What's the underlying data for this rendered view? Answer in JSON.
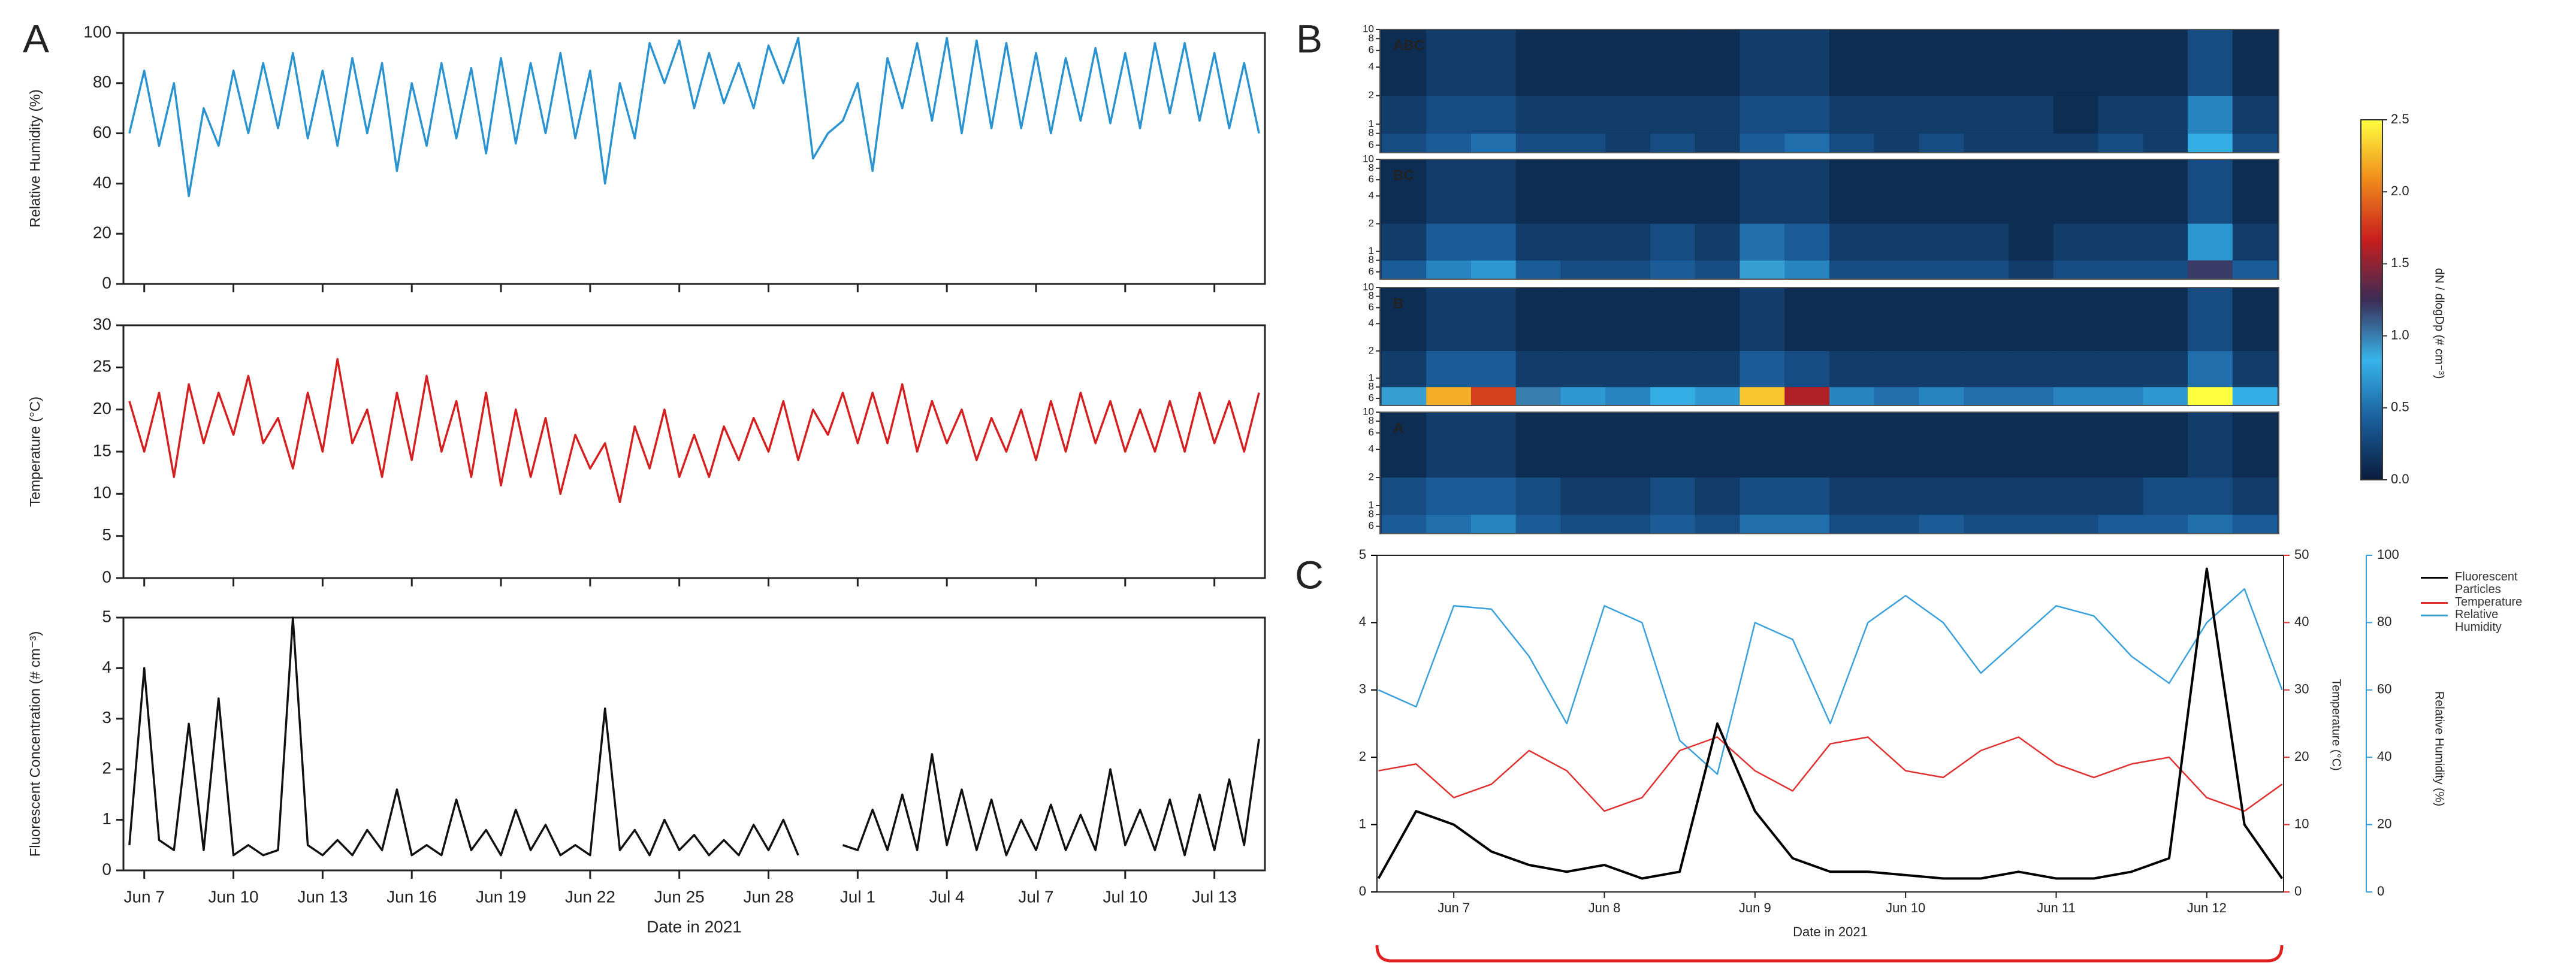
{
  "chart_data": [
    {
      "type": "line",
      "panel_label": "A",
      "ylabel": "Relative Humidity (%)",
      "color": "#2a93d0",
      "x": [
        6.5,
        7,
        7.5,
        8,
        8.5,
        9,
        9.5,
        10,
        10.5,
        11,
        11.5,
        12,
        12.5,
        13,
        13.5,
        14,
        14.5,
        15,
        15.5,
        16,
        16.5,
        17,
        17.5,
        18,
        18.5,
        19,
        19.5,
        20,
        20.5,
        21,
        21.5,
        22,
        22.5,
        23,
        23.5,
        24,
        24.5,
        25,
        25.5,
        26,
        26.5,
        27,
        27.5,
        28,
        28.5,
        29,
        29.5,
        30,
        30.5,
        31,
        31.5,
        32,
        32.5,
        33,
        33.5,
        34,
        34.5,
        35,
        35.5,
        36,
        36.5,
        37,
        37.5,
        38,
        38.5,
        39,
        39.5,
        40,
        40.5,
        41,
        41.5,
        42,
        42.5,
        43,
        43.5,
        44,
        44.5
      ],
      "values": [
        60,
        85,
        55,
        80,
        35,
        70,
        55,
        85,
        60,
        88,
        62,
        92,
        58,
        85,
        55,
        90,
        60,
        88,
        45,
        80,
        55,
        88,
        58,
        86,
        52,
        90,
        56,
        88,
        60,
        92,
        58,
        85,
        40,
        80,
        58,
        96,
        80,
        97,
        70,
        92,
        72,
        88,
        70,
        95,
        80,
        98,
        50,
        60,
        65,
        80,
        45,
        90,
        70,
        96,
        65,
        98,
        60,
        97,
        62,
        96,
        62,
        92,
        60,
        90,
        65,
        94,
        64,
        92,
        62,
        96,
        68,
        96,
        65,
        92,
        62,
        88,
        60
      ],
      "xlim": [
        6.3,
        44.7
      ],
      "ylim": [
        0,
        100
      ],
      "yticks": [
        0,
        20,
        40,
        60,
        80,
        100
      ]
    },
    {
      "type": "line",
      "ylabel": "Temperature (°C)",
      "color": "#d42020",
      "x": [
        6.5,
        7,
        7.5,
        8,
        8.5,
        9,
        9.5,
        10,
        10.5,
        11,
        11.5,
        12,
        12.5,
        13,
        13.5,
        14,
        14.5,
        15,
        15.5,
        16,
        16.5,
        17,
        17.5,
        18,
        18.5,
        19,
        19.5,
        20,
        20.5,
        21,
        21.5,
        22,
        22.5,
        23,
        23.5,
        24,
        24.5,
        25,
        25.5,
        26,
        26.5,
        27,
        27.5,
        28,
        28.5,
        29,
        29.5,
        30,
        30.5,
        31,
        31.5,
        32,
        32.5,
        33,
        33.5,
        34,
        34.5,
        35,
        35.5,
        36,
        36.5,
        37,
        37.5,
        38,
        38.5,
        39,
        39.5,
        40,
        40.5,
        41,
        41.5,
        42,
        42.5,
        43,
        43.5,
        44,
        44.5
      ],
      "values": [
        21,
        15,
        22,
        12,
        23,
        16,
        22,
        17,
        24,
        16,
        19,
        13,
        22,
        15,
        26,
        16,
        20,
        12,
        22,
        14,
        24,
        15,
        21,
        12,
        22,
        11,
        20,
        12,
        19,
        10,
        17,
        13,
        16,
        9,
        18,
        13,
        20,
        12,
        17,
        12,
        18,
        14,
        19,
        15,
        21,
        14,
        20,
        17,
        22,
        16,
        22,
        16,
        23,
        15,
        21,
        16,
        20,
        14,
        19,
        15,
        20,
        14,
        21,
        15,
        22,
        16,
        21,
        15,
        20,
        15,
        21,
        15,
        22,
        16,
        21,
        15,
        22
      ],
      "xlim": [
        6.3,
        44.7
      ],
      "ylim": [
        0,
        30
      ],
      "yticks": [
        0,
        5,
        10,
        15,
        20,
        25,
        30
      ]
    },
    {
      "type": "line",
      "ylabel": "Fluorescent Concentration (# cm⁻³)",
      "xlabel": "Date in 2021",
      "color": "#111111",
      "x": [
        6.5,
        7,
        7.5,
        8,
        8.5,
        9,
        9.5,
        10,
        10.5,
        11,
        11.5,
        12,
        12.5,
        13,
        13.5,
        14,
        14.5,
        15,
        15.5,
        16,
        16.5,
        17,
        17.5,
        18,
        18.5,
        19,
        19.5,
        20,
        20.5,
        21,
        21.5,
        22,
        22.5,
        23,
        23.5,
        24,
        24.5,
        25,
        25.5,
        26,
        26.5,
        27,
        27.5,
        28,
        28.5,
        29,
        29.5,
        30,
        30.5,
        31,
        31.5,
        32,
        32.5,
        33,
        33.5,
        34,
        34.5,
        35,
        35.5,
        36,
        36.5,
        37,
        37.5,
        38,
        38.5,
        39,
        39.5,
        40,
        40.5,
        41,
        41.5,
        42,
        42.5,
        43,
        43.5,
        44,
        44.5
      ],
      "values": [
        0.5,
        4.0,
        0.6,
        0.4,
        2.9,
        0.4,
        3.4,
        0.3,
        0.5,
        0.3,
        0.4,
        5.0,
        0.5,
        0.3,
        0.6,
        0.3,
        0.8,
        0.4,
        1.6,
        0.3,
        0.5,
        0.3,
        1.4,
        0.4,
        0.8,
        0.3,
        1.2,
        0.4,
        0.9,
        0.3,
        0.5,
        0.3,
        3.2,
        0.4,
        0.8,
        0.3,
        1.0,
        0.4,
        0.7,
        0.3,
        0.6,
        0.3,
        0.9,
        0.4,
        1.0,
        0.3,
        null,
        null,
        0.5,
        0.4,
        1.2,
        0.4,
        1.5,
        0.4,
        2.3,
        0.5,
        1.6,
        0.4,
        1.4,
        0.3,
        1.0,
        0.4,
        1.3,
        0.4,
        1.1,
        0.4,
        2.0,
        0.5,
        1.2,
        0.4,
        1.4,
        0.3,
        1.5,
        0.4,
        1.8,
        0.5,
        2.6
      ],
      "xlim": [
        6.3,
        44.7
      ],
      "ylim": [
        0,
        5
      ],
      "yticks": [
        0,
        1,
        2,
        3,
        4,
        5
      ],
      "xticks": [
        {
          "value": 7,
          "label": "Jun 7"
        },
        {
          "value": 10,
          "label": "Jun 10"
        },
        {
          "value": 13,
          "label": "Jun 13"
        },
        {
          "value": 16,
          "label": "Jun 16"
        },
        {
          "value": 19,
          "label": "Jun 19"
        },
        {
          "value": 22,
          "label": "Jun 22"
        },
        {
          "value": 25,
          "label": "Jun 25"
        },
        {
          "value": 28,
          "label": "Jun 28"
        },
        {
          "value": 31,
          "label": "Jul 1"
        },
        {
          "value": 34,
          "label": "Jul 4"
        },
        {
          "value": 37,
          "label": "Jul 7"
        },
        {
          "value": 40,
          "label": "Jul 10"
        },
        {
          "value": 43,
          "label": "Jul 13"
        }
      ]
    },
    {
      "type": "heatmap",
      "panel_label": "B",
      "xlim": [
        6.49,
        12.51
      ],
      "log_y": true,
      "ylim": [
        0.5,
        10
      ],
      "xbins": [
        6.5,
        6.8,
        7.1,
        7.4,
        7.7,
        8,
        8.3,
        8.6,
        8.9,
        9.2,
        9.5,
        9.8,
        10.1,
        10.4,
        10.7,
        11,
        11.3,
        11.6,
        11.9,
        12.2,
        12.5
      ],
      "ybins": [
        0.5,
        0.8,
        2,
        10
      ],
      "yticks": [
        10,
        8,
        6,
        4,
        2,
        1,
        {
          "value": 0.8,
          "label": "8"
        },
        {
          "value": 0.6,
          "label": "6"
        }
      ],
      "panels": [
        {
          "name": "ABC",
          "z": [
            [
              0.3,
              0.4,
              0.5,
              0.3,
              0.3,
              0.2,
              0.3,
              0.2,
              0.4,
              0.5,
              0.3,
              0.2,
              0.3,
              0.2,
              0.2,
              0.2,
              0.3,
              0.2,
              0.8,
              0.3
            ],
            [
              0.2,
              0.3,
              0.3,
              0.2,
              0.2,
              0.2,
              0.2,
              0.2,
              0.3,
              0.3,
              0.2,
              0.2,
              0.2,
              0.2,
              0.2,
              0.1,
              0.2,
              0.2,
              0.6,
              0.2
            ],
            [
              0.1,
              0.2,
              0.2,
              0.1,
              0.1,
              0.1,
              0.1,
              0.1,
              0.2,
              0.2,
              0.1,
              0.1,
              0.1,
              0.1,
              0.1,
              0.1,
              0.1,
              0.1,
              0.3,
              0.1
            ]
          ]
        },
        {
          "name": "BC",
          "z": [
            [
              0.4,
              0.6,
              0.7,
              0.4,
              0.3,
              0.3,
              0.4,
              0.3,
              0.9,
              0.6,
              0.3,
              0.3,
              0.3,
              0.3,
              0.2,
              0.3,
              0.3,
              0.3,
              1.2,
              0.4
            ],
            [
              0.2,
              0.4,
              0.4,
              0.2,
              0.2,
              0.2,
              0.3,
              0.2,
              0.5,
              0.4,
              0.2,
              0.2,
              0.2,
              0.2,
              0.1,
              0.2,
              0.2,
              0.2,
              0.7,
              0.2
            ],
            [
              0.1,
              0.2,
              0.2,
              0.1,
              0.1,
              0.1,
              0.1,
              0.1,
              0.2,
              0.2,
              0.1,
              0.1,
              0.1,
              0.1,
              0.1,
              0.1,
              0.1,
              0.1,
              0.3,
              0.1
            ]
          ]
        },
        {
          "name": "B",
          "z": [
            [
              0.9,
              2.2,
              1.8,
              1.0,
              0.7,
              0.6,
              0.8,
              0.7,
              2.3,
              1.6,
              0.6,
              0.5,
              0.6,
              0.5,
              0.5,
              0.6,
              0.6,
              0.7,
              2.5,
              0.8
            ],
            [
              0.2,
              0.4,
              0.4,
              0.2,
              0.2,
              0.2,
              0.2,
              0.2,
              0.4,
              0.3,
              0.2,
              0.2,
              0.2,
              0.2,
              0.2,
              0.2,
              0.2,
              0.2,
              0.5,
              0.2
            ],
            [
              0.1,
              0.2,
              0.2,
              0.1,
              0.1,
              0.1,
              0.1,
              0.1,
              0.2,
              0.1,
              0.1,
              0.1,
              0.1,
              0.1,
              0.1,
              0.1,
              0.1,
              0.1,
              0.3,
              0.1
            ]
          ]
        },
        {
          "name": "A",
          "z": [
            [
              0.4,
              0.5,
              0.6,
              0.4,
              0.3,
              0.3,
              0.4,
              0.3,
              0.5,
              0.5,
              0.3,
              0.3,
              0.4,
              0.3,
              0.3,
              0.3,
              0.4,
              0.4,
              0.5,
              0.4
            ],
            [
              0.3,
              0.4,
              0.4,
              0.3,
              0.2,
              0.2,
              0.3,
              0.2,
              0.3,
              0.3,
              0.2,
              0.2,
              0.2,
              0.2,
              0.2,
              0.2,
              0.2,
              0.3,
              0.3,
              0.2
            ],
            [
              0.1,
              0.2,
              0.2,
              0.1,
              0.1,
              0.1,
              0.1,
              0.1,
              0.1,
              0.1,
              0.1,
              0.1,
              0.1,
              0.1,
              0.1,
              0.1,
              0.1,
              0.1,
              0.2,
              0.1
            ]
          ]
        }
      ],
      "zlim": [
        0,
        2.5
      ],
      "zticks": [
        {
          "value": 0,
          "label": "0.0"
        },
        {
          "value": 0.5,
          "label": "0.5"
        },
        {
          "value": 1,
          "label": "1.0"
        },
        {
          "value": 1.5,
          "label": "1.5"
        },
        {
          "value": 2,
          "label": "2.0"
        },
        {
          "value": 2.5,
          "label": "2.5"
        }
      ],
      "zlabel": "dN / dlogDp (# cm⁻³)",
      "colors": [
        "#0a1d3c",
        "#1b5e9c",
        "#36b4ea",
        "#3a2c55",
        "#c81e1e",
        "#f08a1a",
        "#ffff40"
      ]
    },
    {
      "type": "line",
      "panel_label": "C",
      "xlabel": "Date in 2021",
      "x": [
        6.5,
        6.75,
        7,
        7.25,
        7.5,
        7.75,
        8,
        8.25,
        8.5,
        8.75,
        9,
        9.25,
        9.5,
        9.75,
        10,
        10.25,
        10.5,
        10.75,
        11,
        11.25,
        11.5,
        11.75,
        12,
        12.25,
        12.5
      ],
      "xlim": [
        6.49,
        12.51
      ],
      "xticks": [
        {
          "value": 7,
          "label": "Jun 7"
        },
        {
          "value": 8,
          "label": "Jun 8"
        },
        {
          "value": 9,
          "label": "Jun 9"
        },
        {
          "value": 10,
          "label": "Jun 10"
        },
        {
          "value": 11,
          "label": "Jun 11"
        },
        {
          "value": 12,
          "label": "Jun 12"
        }
      ],
      "ylim": [
        0,
        5
      ],
      "yticks": [
        0,
        1,
        2,
        3,
        4,
        5
      ],
      "y2lim": [
        0,
        50
      ],
      "y2ticks": [
        0,
        10,
        20,
        30,
        40,
        50
      ],
      "y2label": "Temperature (°C)",
      "y3lim": [
        0,
        100
      ],
      "y3ticks": [
        0,
        20,
        40,
        60,
        80,
        100
      ],
      "y3label": "Relative Humidity (%)",
      "series": [
        {
          "name": "Fluorescent Particles",
          "color": "#000000",
          "values": [
            0.2,
            1.2,
            1.0,
            0.6,
            0.4,
            0.3,
            0.4,
            0.2,
            0.3,
            2.5,
            1.2,
            0.5,
            0.3,
            0.3,
            0.25,
            0.2,
            0.2,
            0.3,
            0.2,
            0.2,
            0.3,
            0.5,
            4.8,
            1.0,
            0.2
          ]
        },
        {
          "name": "Temperature",
          "color": "#e03030",
          "axis": "y2",
          "values": [
            18,
            19,
            14,
            16,
            21,
            18,
            12,
            14,
            21,
            23,
            18,
            15,
            22,
            23,
            18,
            17,
            21,
            23,
            19,
            17,
            19,
            20,
            14,
            12,
            16
          ]
        },
        {
          "name": "Relative Humidity",
          "color": "#3aa0dc",
          "axis": "y3",
          "values": [
            60,
            55,
            85,
            84,
            70,
            50,
            85,
            80,
            45,
            35,
            80,
            75,
            50,
            80,
            88,
            80,
            65,
            75,
            85,
            82,
            70,
            62,
            80,
            90,
            60
          ]
        }
      ]
    }
  ]
}
